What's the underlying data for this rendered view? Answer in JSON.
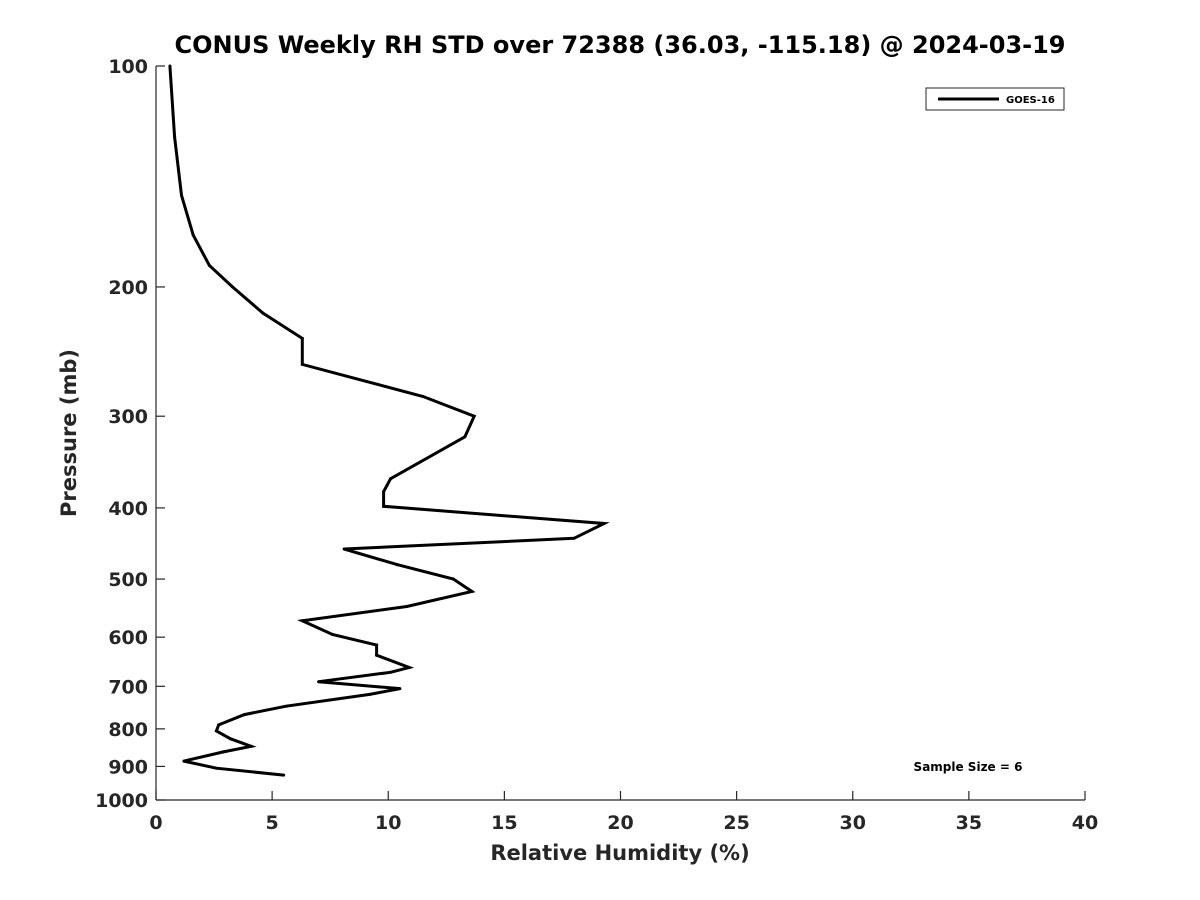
{
  "chart_data": {
    "type": "line",
    "title": "CONUS Weekly RH STD over 72388 (36.03, -115.18) @ 2024-03-19",
    "xlabel": "Relative Humidity (%)",
    "ylabel": "Pressure (mb)",
    "xlim": [
      0,
      40
    ],
    "ylim": [
      100,
      1000
    ],
    "y_scale": "log",
    "y_reversed": true,
    "x_ticks": [
      0,
      5,
      10,
      15,
      20,
      25,
      30,
      35,
      40
    ],
    "y_ticks": [
      100,
      200,
      300,
      400,
      500,
      600,
      700,
      800,
      900,
      1000
    ],
    "grid": false,
    "legend_position": "top-right",
    "annotation": "Sample Size = 6",
    "series": [
      {
        "name": "GOES-16",
        "color": "#000000",
        "points": [
          [
            0.6,
            100
          ],
          [
            0.8,
            125
          ],
          [
            1.1,
            150
          ],
          [
            1.6,
            170
          ],
          [
            2.3,
            187
          ],
          [
            3.3,
            200
          ],
          [
            4.6,
            217
          ],
          [
            6.3,
            235
          ],
          [
            6.3,
            255
          ],
          [
            11.5,
            282
          ],
          [
            13.7,
            300
          ],
          [
            13.3,
            320
          ],
          [
            10.1,
            365
          ],
          [
            9.8,
            380
          ],
          [
            9.8,
            398
          ],
          [
            19.3,
            420
          ],
          [
            18.0,
            440
          ],
          [
            8.1,
            455
          ],
          [
            10.4,
            478
          ],
          [
            12.8,
            500
          ],
          [
            13.6,
            520
          ],
          [
            10.8,
            545
          ],
          [
            6.3,
            570
          ],
          [
            7.6,
            595
          ],
          [
            9.5,
            615
          ],
          [
            9.5,
            635
          ],
          [
            10.9,
            660
          ],
          [
            10.1,
            670
          ],
          [
            7.0,
            690
          ],
          [
            10.5,
            705
          ],
          [
            9.2,
            718
          ],
          [
            5.6,
            745
          ],
          [
            3.8,
            765
          ],
          [
            2.7,
            790
          ],
          [
            2.6,
            805
          ],
          [
            3.2,
            825
          ],
          [
            4.1,
            845
          ],
          [
            2.9,
            860
          ],
          [
            1.2,
            885
          ],
          [
            2.6,
            905
          ],
          [
            5.5,
            925
          ]
        ]
      }
    ]
  }
}
